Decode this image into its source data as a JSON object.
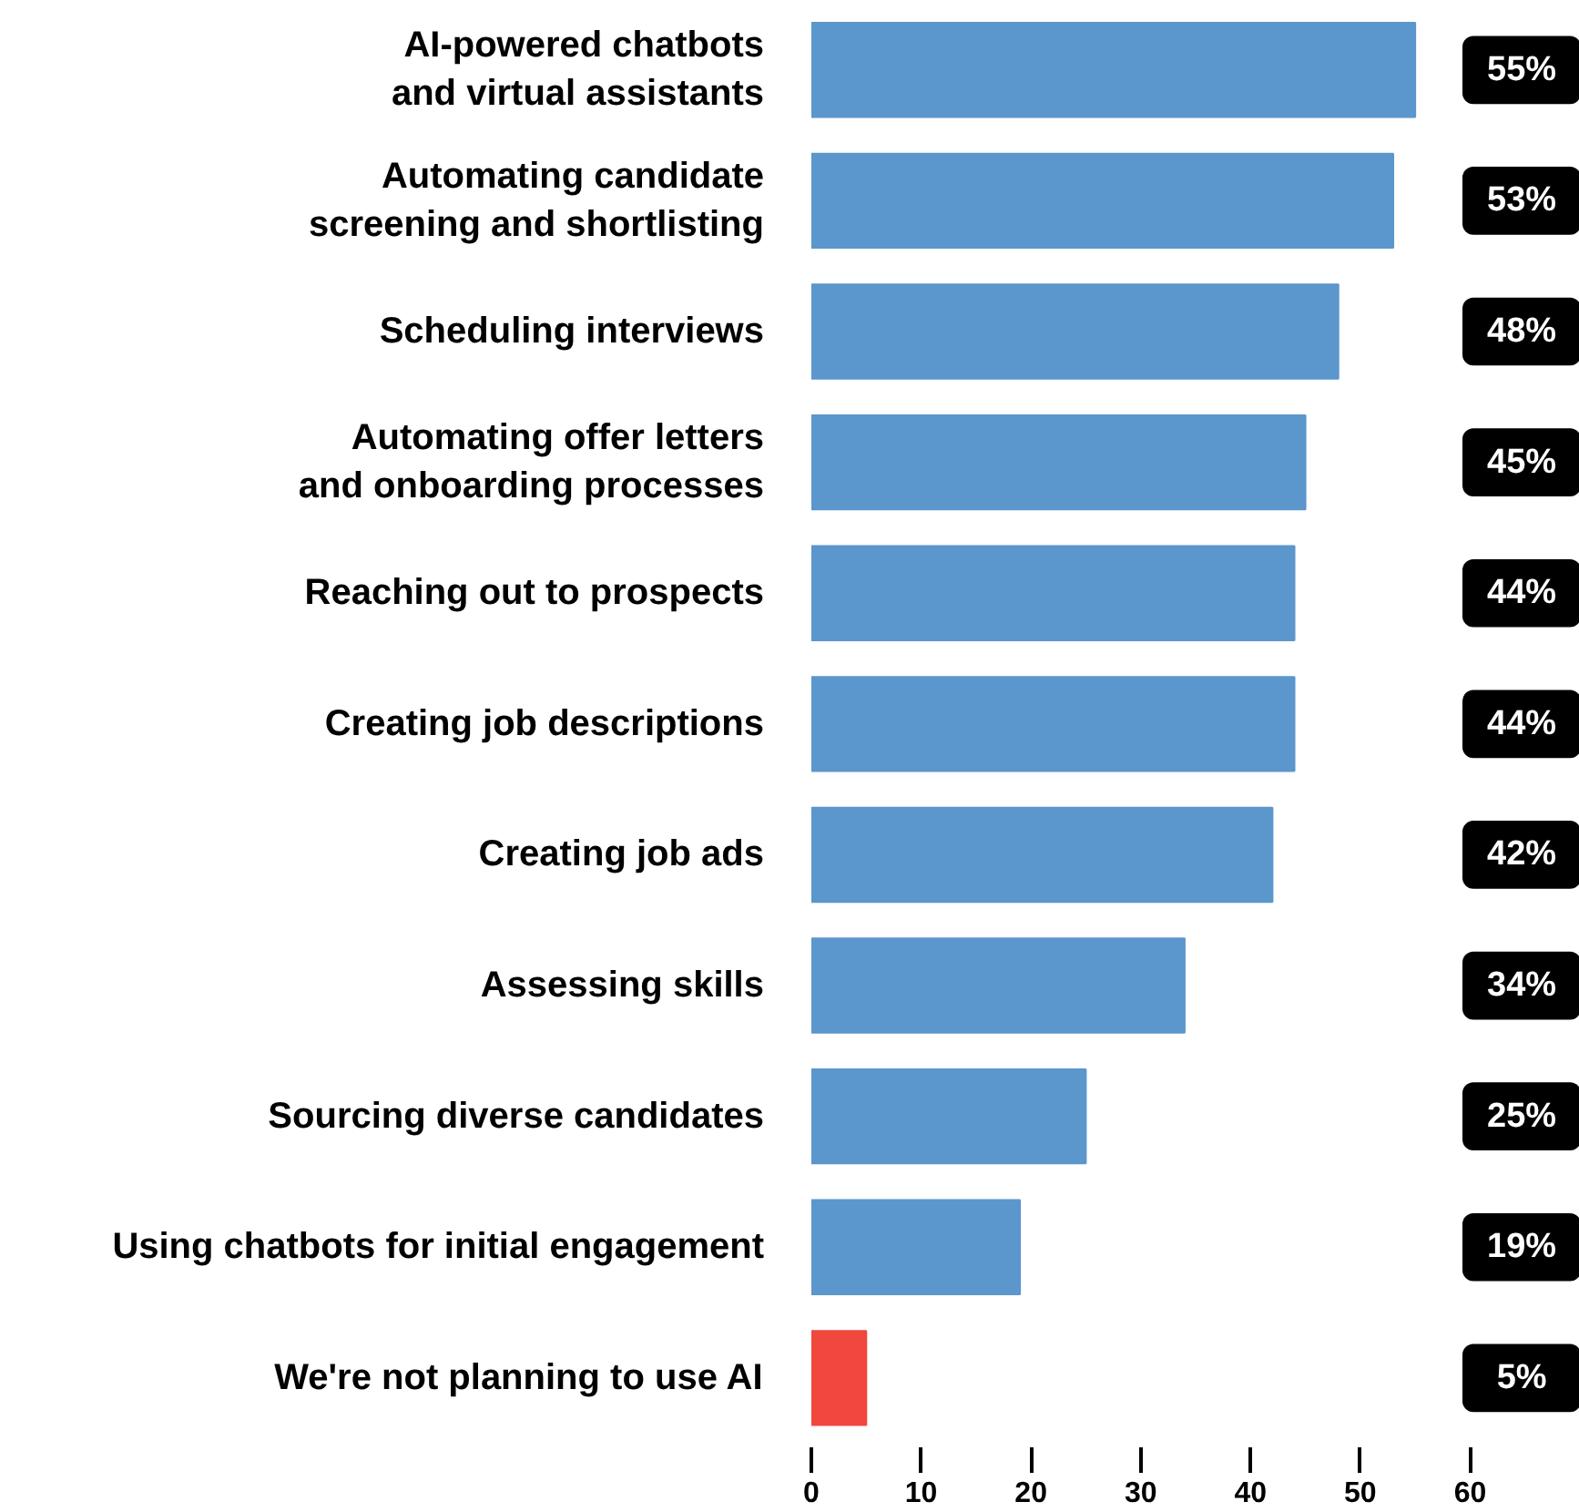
{
  "chart_data": {
    "type": "bar",
    "orientation": "horizontal",
    "categories": [
      "AI-powered chatbots\nand virtual assistants",
      "Automating candidate\nscreening and shortlisting",
      "Scheduling interviews",
      "Automating offer letters\nand onboarding processes",
      "Reaching out to prospects",
      "Creating job descriptions",
      "Creating job ads",
      "Assessing skills",
      "Sourcing diverse candidates",
      "Using chatbots for initial engagement",
      "We're not planning to use AI"
    ],
    "values": [
      55,
      53,
      48,
      45,
      44,
      44,
      42,
      34,
      25,
      19,
      5
    ],
    "colors": [
      "#5b96cc",
      "#5b96cc",
      "#5b96cc",
      "#5b96cc",
      "#5b96cc",
      "#5b96cc",
      "#5b96cc",
      "#5b96cc",
      "#5b96cc",
      "#5b96cc",
      "#f0483e"
    ],
    "value_labels": [
      "55%",
      "53%",
      "48%",
      "45%",
      "44%",
      "44%",
      "42%",
      "34%",
      "25%",
      "19%",
      "5%"
    ],
    "xlim": [
      0,
      70
    ],
    "xticks": [
      0,
      10,
      20,
      30,
      40,
      50,
      60
    ],
    "grid": false
  }
}
